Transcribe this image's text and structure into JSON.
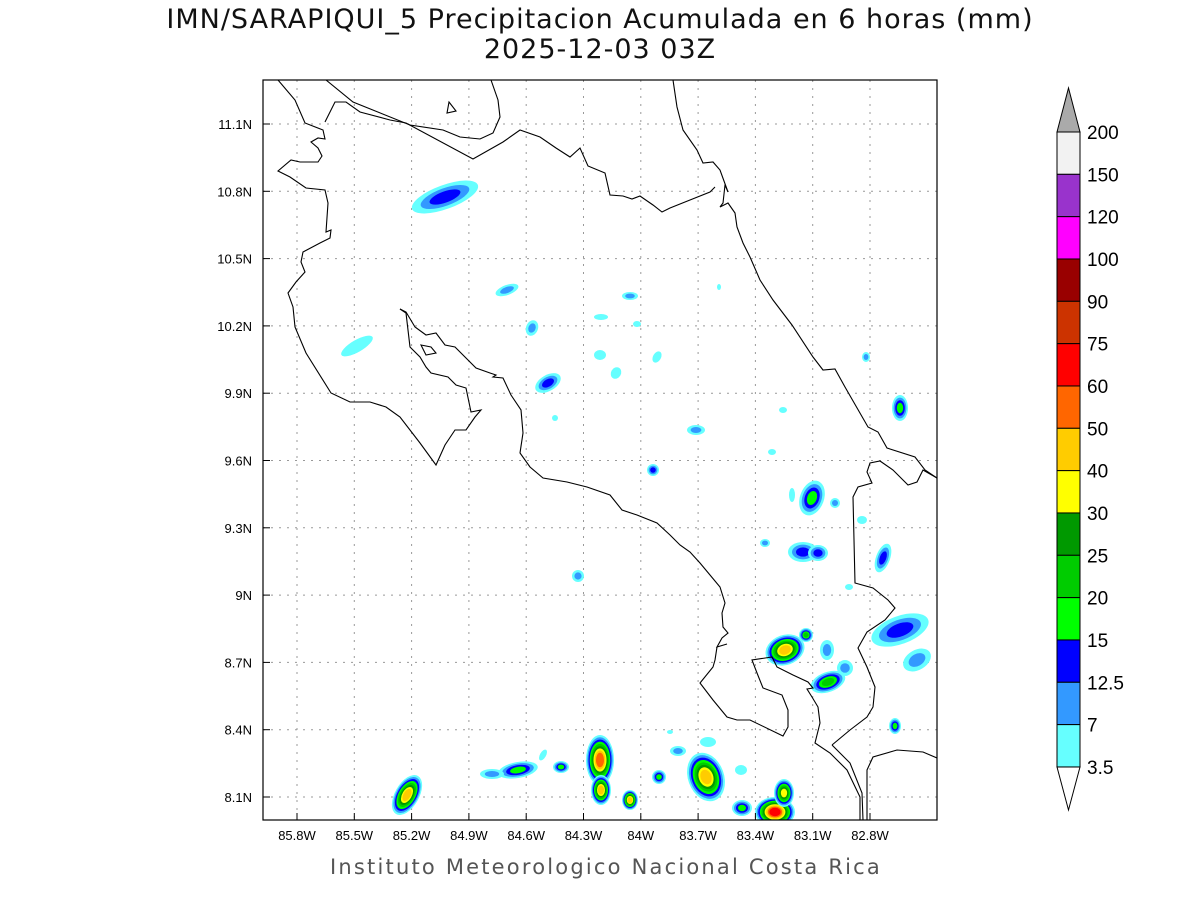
{
  "title": {
    "line1": "IMN/SARAPIQUI_5 Precipitacion Acumulada en 6 horas (mm)",
    "line2": "2025-12-03 03Z"
  },
  "footer": "Instituto Meteorologico Nacional Costa Rica",
  "map": {
    "lon_range": [
      -86.0,
      -82.45
    ],
    "lat_range": [
      8.0,
      11.3
    ],
    "x_ticks": [
      "85.8W",
      "85.5W",
      "85.2W",
      "84.9W",
      "84.6W",
      "84.3W",
      "84W",
      "83.7W",
      "83.4W",
      "83.1W",
      "82.8W"
    ],
    "y_ticks": [
      "11.1N",
      "10.8N",
      "10.5N",
      "10.2N",
      "9.9N",
      "9.6N",
      "9.3N",
      "9N",
      "8.7N",
      "8.4N",
      "8.1N"
    ],
    "grid": true
  },
  "colorbar": {
    "labels": [
      "200",
      "150",
      "120",
      "100",
      "90",
      "75",
      "60",
      "50",
      "40",
      "30",
      "25",
      "20",
      "15",
      "12.5",
      "7",
      "3.5"
    ],
    "colors": [
      "#f2f2f2",
      "#9933cc",
      "#ff00ff",
      "#990000",
      "#cc3300",
      "#ff0000",
      "#ff6600",
      "#ffcc00",
      "#ffff00",
      "#009900",
      "#00cc00",
      "#00ff00",
      "#0000ff",
      "#3399ff",
      "#66ffff"
    ],
    "over_color": "#aaaaaa",
    "under_color": "#ffffff"
  }
}
